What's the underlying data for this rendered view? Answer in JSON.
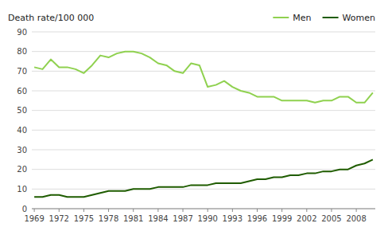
{
  "chart_data": {
    "type": "line",
    "y_label": "Death rate/100 000",
    "x": [
      1969,
      1970,
      1971,
      1972,
      1973,
      1974,
      1975,
      1976,
      1977,
      1978,
      1979,
      1980,
      1981,
      1982,
      1983,
      1984,
      1985,
      1986,
      1987,
      1988,
      1989,
      1990,
      1991,
      1992,
      1993,
      1994,
      1995,
      1996,
      1997,
      1998,
      1999,
      2000,
      2001,
      2002,
      2003,
      2004,
      2005,
      2006,
      2007,
      2008,
      2009,
      2010
    ],
    "series": [
      {
        "name": "Men",
        "color": "#8FD14F",
        "values": [
          72,
          71,
          76,
          72,
          72,
          71,
          69,
          73,
          78,
          77,
          79,
          80,
          80,
          79,
          77,
          74,
          73,
          70,
          69,
          74,
          73,
          62,
          63,
          65,
          62,
          60,
          59,
          57,
          57,
          57,
          55,
          55,
          55,
          55,
          54,
          55,
          55,
          57,
          57,
          54,
          54,
          59
        ]
      },
      {
        "name": "Women",
        "color": "#1F5C00",
        "values": [
          6,
          6,
          7,
          7,
          6,
          6,
          6,
          7,
          8,
          9,
          9,
          9,
          10,
          10,
          10,
          11,
          11,
          11,
          11,
          12,
          12,
          12,
          13,
          13,
          13,
          13,
          14,
          15,
          15,
          16,
          16,
          17,
          17,
          18,
          18,
          19,
          19,
          20,
          20,
          22,
          23,
          25
        ]
      }
    ],
    "xlim": [
      1968.7,
      2010.3
    ],
    "ylim": [
      0,
      90
    ],
    "xticks": [
      1969,
      1972,
      1975,
      1978,
      1981,
      1984,
      1987,
      1990,
      1993,
      1996,
      1999,
      2002,
      2005,
      2008
    ],
    "yticks": [
      0,
      10,
      20,
      30,
      40,
      50,
      60,
      70,
      80,
      90
    ],
    "grid": true,
    "legend": "top-right"
  }
}
